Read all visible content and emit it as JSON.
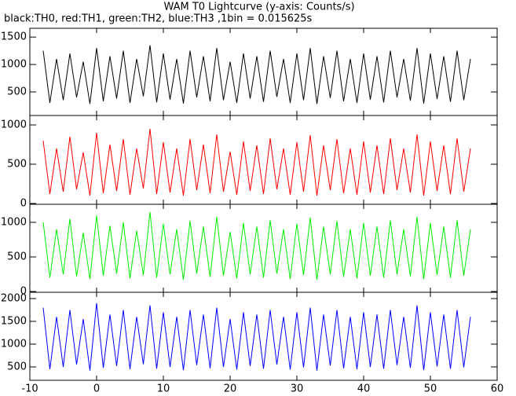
{
  "chart_data": {
    "type": "line",
    "title": "WAM T0 Lightcurve (y-axis: Counts/s)",
    "subtitle": "black:TH0, red:TH1, green:TH2, blue:TH3 ,1bin = 0.015625s",
    "x": [
      -8,
      -7,
      -6,
      -5,
      -4,
      -3,
      -2,
      -1,
      0,
      1,
      2,
      3,
      4,
      5,
      6,
      7,
      8,
      9,
      10,
      11,
      12,
      13,
      14,
      15,
      16,
      17,
      18,
      19,
      20,
      21,
      22,
      23,
      24,
      25,
      26,
      27,
      28,
      29,
      30,
      31,
      32,
      33,
      34,
      35,
      36,
      37,
      38,
      39,
      40,
      41,
      42,
      43,
      44,
      45,
      46,
      47,
      48,
      49,
      50,
      51,
      52,
      53,
      54,
      55,
      56
    ],
    "xlim": [
      -10,
      60
    ],
    "xticks": [
      -10,
      0,
      10,
      20,
      30,
      40,
      50,
      60
    ],
    "panels": [
      {
        "color": "#000000",
        "ylim": [
          70,
          1660
        ],
        "yticks": [
          500,
          1000,
          1500
        ],
        "values": [
          1250,
          300,
          1100,
          350,
          1200,
          400,
          1050,
          280,
          1300,
          330,
          1150,
          380,
          1250,
          300,
          1100,
          420,
          1350,
          310,
          1200,
          360,
          1100,
          290,
          1250,
          400,
          1150,
          330,
          1300,
          350,
          1050,
          300,
          1200,
          380,
          1150,
          320,
          1250,
          410,
          1100,
          300,
          1200,
          350,
          1300,
          280,
          1150,
          390,
          1250,
          330,
          1100,
          300,
          1200,
          360,
          1150,
          310,
          1250,
          400,
          1100,
          340,
          1300,
          290,
          1200,
          370,
          1150,
          320,
          1250,
          350,
          1100
        ]
      },
      {
        "color": "#ff0000",
        "ylim": [
          -10,
          1120
        ],
        "yticks": [
          0,
          500,
          1000
        ],
        "values": [
          800,
          120,
          700,
          150,
          850,
          180,
          650,
          100,
          900,
          130,
          750,
          160,
          820,
          110,
          700,
          190,
          950,
          120,
          780,
          140,
          700,
          100,
          820,
          170,
          750,
          130,
          880,
          150,
          660,
          110,
          790,
          160,
          740,
          120,
          830,
          180,
          700,
          110,
          780,
          150,
          870,
          100,
          740,
          170,
          820,
          130,
          700,
          110,
          790,
          140,
          740,
          120,
          830,
          170,
          700,
          140,
          880,
          100,
          790,
          160,
          740,
          120,
          830,
          150,
          700
        ]
      },
      {
        "color": "#00ee00",
        "ylim": [
          -11,
          1261
        ],
        "yticks": [
          0,
          500,
          1000
        ],
        "values": [
          1000,
          200,
          900,
          250,
          1050,
          220,
          850,
          180,
          1100,
          230,
          950,
          260,
          1000,
          190,
          880,
          240,
          1150,
          200,
          980,
          250,
          900,
          170,
          1020,
          260,
          940,
          210,
          1080,
          230,
          860,
          190,
          990,
          250,
          940,
          200,
          1030,
          260,
          900,
          180,
          980,
          240,
          1070,
          170,
          940,
          250,
          1020,
          210,
          900,
          190,
          990,
          230,
          940,
          200,
          1030,
          250,
          900,
          220,
          1080,
          180,
          990,
          240,
          940,
          200,
          1030,
          230,
          900
        ]
      },
      {
        "color": "#0000ff",
        "ylim": [
          207,
          2138
        ],
        "yticks": [
          500,
          1000,
          1500,
          2000
        ],
        "values": [
          1800,
          450,
          1600,
          500,
          1750,
          550,
          1550,
          420,
          1900,
          480,
          1650,
          520,
          1750,
          450,
          1600,
          560,
          1850,
          460,
          1700,
          500,
          1600,
          430,
          1750,
          540,
          1650,
          470,
          1800,
          500,
          1550,
          440,
          1700,
          520,
          1650,
          460,
          1750,
          550,
          1600,
          440,
          1700,
          490,
          1800,
          420,
          1650,
          530,
          1750,
          470,
          1600,
          450,
          1700,
          500,
          1650,
          460,
          1750,
          540,
          1600,
          480,
          1850,
          430,
          1700,
          510,
          1650,
          460,
          1750,
          490,
          1600
        ]
      }
    ]
  }
}
